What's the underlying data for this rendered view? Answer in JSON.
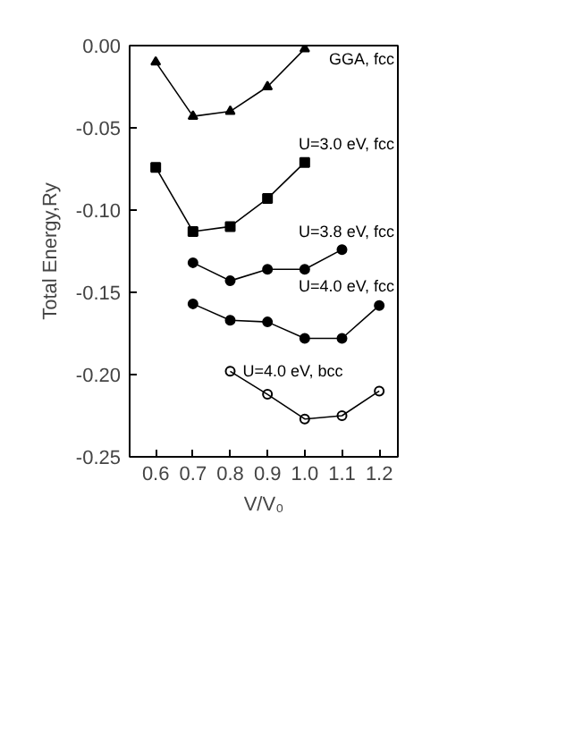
{
  "chart_data": {
    "type": "line",
    "xlabel": "V/V₀",
    "ylabel": "Total Energy,Ry",
    "x": [
      0.6,
      0.7,
      0.8,
      0.9,
      1.0,
      1.1,
      1.2
    ],
    "series": [
      {
        "name": "GGA, fcc",
        "color": "#000000",
        "marker": "triangle",
        "values": [
          -0.01,
          -0.043,
          -0.04,
          -0.025,
          -0.002,
          null,
          null
        ]
      },
      {
        "name": "U=3.0 eV, fcc",
        "color": "#000000",
        "marker": "square",
        "values": [
          -0.074,
          -0.113,
          -0.11,
          -0.093,
          -0.071,
          null,
          null
        ]
      },
      {
        "name": "U=3.8 eV, fcc",
        "color": "#000000",
        "marker": "circle",
        "values": [
          null,
          -0.132,
          -0.143,
          -0.136,
          -0.136,
          -0.124,
          null
        ]
      },
      {
        "name": "U=4.0 eV, fcc",
        "color": "#000000",
        "marker": "circle",
        "values": [
          null,
          -0.157,
          -0.167,
          -0.168,
          -0.178,
          -0.178,
          -0.158
        ]
      },
      {
        "name": "U=4.0 eV, bcc",
        "color": "#000000",
        "marker": "open_circle",
        "values": [
          null,
          null,
          -0.198,
          -0.212,
          -0.227,
          -0.225,
          -0.21
        ]
      }
    ],
    "xlim": [
      0.53,
      1.25
    ],
    "xticks": [
      0.6,
      0.7,
      0.8,
      0.9,
      {
        "value": 1.0,
        "label": "1.0"
      },
      1.1,
      1.2
    ],
    "ylim": [
      -0.25,
      0.0
    ],
    "yticks": [
      {
        "value": -0.25,
        "label": "-0.25"
      },
      {
        "value": -0.2,
        "label": "-0.20"
      },
      {
        "value": -0.15,
        "label": "-0.15"
      },
      {
        "value": -0.1,
        "label": "-0.10"
      },
      {
        "value": -0.05,
        "label": "-0.05"
      },
      {
        "value": 0.0,
        "label": "0.00"
      }
    ],
    "grid": false
  }
}
